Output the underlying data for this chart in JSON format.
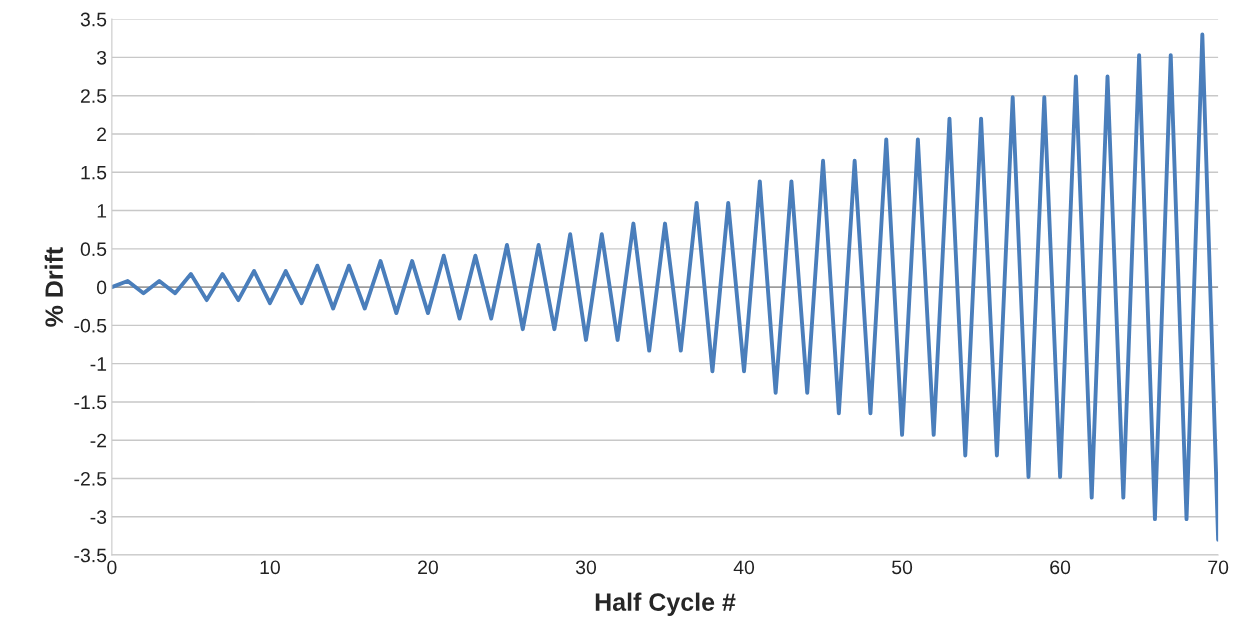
{
  "chart_data": {
    "type": "line",
    "xlabel": "Half Cycle #",
    "ylabel": "% Drift",
    "x": [
      0,
      1,
      2,
      3,
      4,
      5,
      6,
      7,
      8,
      9,
      10,
      11,
      12,
      13,
      14,
      15,
      16,
      17,
      18,
      19,
      20,
      21,
      22,
      23,
      24,
      25,
      26,
      27,
      28,
      29,
      30,
      31,
      32,
      33,
      34,
      35,
      36,
      37,
      38,
      39,
      40,
      41,
      42,
      43,
      44,
      45,
      46,
      47,
      48,
      49,
      50,
      51,
      52,
      53,
      54,
      55,
      56,
      57,
      58,
      59,
      60,
      61,
      62,
      63,
      64,
      65,
      66,
      67,
      68,
      69,
      70
    ],
    "series": [
      {
        "color": "#4a7ebb",
        "values": [
          0,
          0.08,
          -0.08,
          0.08,
          -0.08,
          0.17,
          -0.17,
          0.17,
          -0.17,
          0.21,
          -0.21,
          0.21,
          -0.21,
          0.28,
          -0.28,
          0.28,
          -0.28,
          0.34,
          -0.34,
          0.34,
          -0.34,
          0.41,
          -0.41,
          0.41,
          -0.41,
          0.55,
          -0.55,
          0.55,
          -0.55,
          0.69,
          -0.69,
          0.69,
          -0.69,
          0.83,
          -0.83,
          0.83,
          -0.83,
          1.1,
          -1.1,
          1.1,
          -1.1,
          1.38,
          -1.38,
          1.38,
          -1.38,
          1.65,
          -1.65,
          1.65,
          -1.65,
          1.93,
          -1.93,
          1.93,
          -1.93,
          2.2,
          -2.2,
          2.2,
          -2.2,
          2.48,
          -2.48,
          2.48,
          -2.48,
          2.75,
          -2.75,
          2.75,
          -2.75,
          3.03,
          -3.03,
          3.03,
          -3.03,
          3.3,
          -3.3
        ]
      }
    ],
    "xlim": [
      0,
      70
    ],
    "xticks": [
      0,
      10,
      20,
      30,
      40,
      50,
      60,
      70
    ],
    "ylim": [
      -3.5,
      3.5
    ],
    "yticks": [
      -3.5,
      -3,
      -2.5,
      -2,
      -1.5,
      -1,
      -0.5,
      0,
      0.5,
      1,
      1.5,
      2,
      2.5,
      3,
      3.5
    ],
    "grid": "y",
    "legend": false,
    "marker": "none",
    "line_style": "solid"
  }
}
